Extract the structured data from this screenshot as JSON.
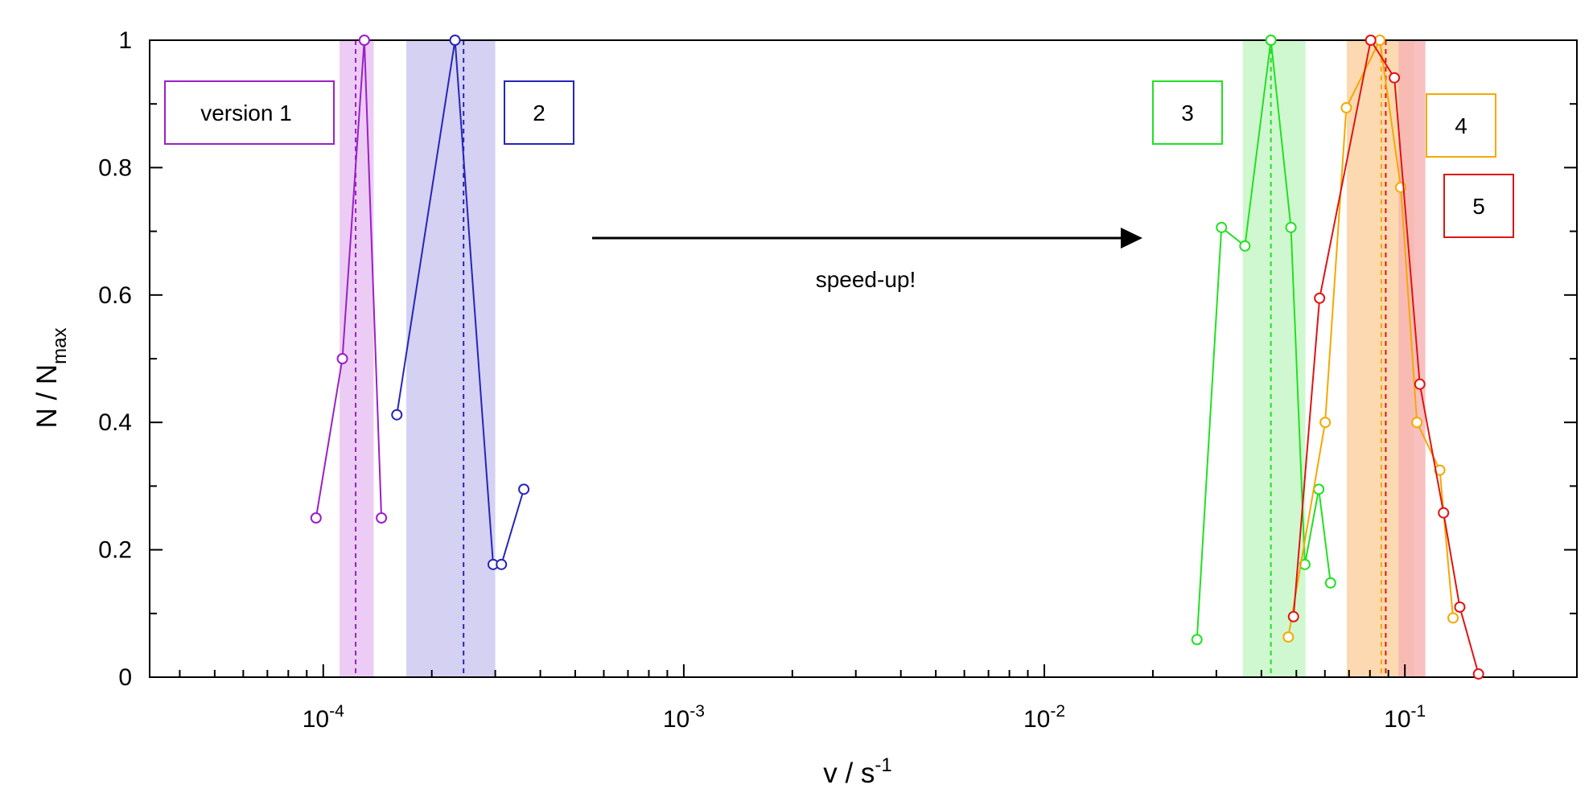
{
  "chart_data": {
    "type": "line",
    "x_scale": "log",
    "xlim": [
      3.3e-05,
      0.3
    ],
    "ylim": [
      0,
      1
    ],
    "xlabel": {
      "base": "v / s",
      "sup": "-1"
    },
    "ylabel": {
      "base": "N / N",
      "sub": "max"
    },
    "x_major_ticks": [
      {
        "value": 0.0001,
        "label_base": "10",
        "label_sup": "-4"
      },
      {
        "value": 0.001,
        "label_base": "10",
        "label_sup": "-3"
      },
      {
        "value": 0.01,
        "label_base": "10",
        "label_sup": "-2"
      },
      {
        "value": 0.1,
        "label_base": "10",
        "label_sup": "-1"
      }
    ],
    "y_ticks": [
      {
        "value": 0,
        "label": "0"
      },
      {
        "value": 0.2,
        "label": "0.2"
      },
      {
        "value": 0.4,
        "label": "0.4"
      },
      {
        "value": 0.6,
        "label": "0.6"
      },
      {
        "value": 0.8,
        "label": "0.8"
      },
      {
        "value": 1.0,
        "label": "1"
      }
    ],
    "grid": false,
    "series": [
      {
        "name": "version 1",
        "color": "#9b1fc7",
        "band_color": "#e9c3f2",
        "band": [
          0.000111,
          0.000138
        ],
        "mean": 0.000123,
        "segments": [
          [
            [
              9.55e-05,
              0.25
            ],
            [
              0.000113,
              0.5
            ],
            [
              0.00013,
              1.0
            ],
            [
              0.000145,
              0.25
            ]
          ]
        ]
      },
      {
        "name": "2",
        "color": "#2626b8",
        "band_color": "#cdc9f0",
        "band": [
          0.00017,
          0.0003
        ],
        "mean": 0.000245,
        "segments": [
          [
            [
              0.00016,
              0.412
            ],
            [
              0.000232,
              1.0
            ],
            [
              0.000296,
              0.177
            ]
          ],
          [
            [
              0.000312,
              0.177
            ],
            [
              0.00036,
              0.295
            ]
          ]
        ]
      },
      {
        "name": "3",
        "color": "#22e022",
        "band_color": "#c8f7c8",
        "band": [
          0.0355,
          0.053
        ],
        "mean": 0.0425,
        "segments": [
          [
            [
              0.0265,
              0.059
            ],
            [
              0.031,
              0.706
            ],
            [
              0.036,
              0.677
            ],
            [
              0.0425,
              1.0
            ],
            [
              0.0483,
              0.706
            ],
            [
              0.0528,
              0.177
            ],
            [
              0.0577,
              0.295
            ],
            [
              0.0622,
              0.148
            ]
          ]
        ]
      },
      {
        "name": "4",
        "color": "#f5a800",
        "band_color": "#fbd2a2",
        "band": [
          0.069,
          0.106
        ],
        "mean": 0.086,
        "segments": [
          [
            [
              0.0475,
              0.063
            ],
            [
              0.0601,
              0.4
            ],
            [
              0.0688,
              0.894
            ],
            [
              0.0852,
              1.0
            ],
            [
              0.0974,
              0.769
            ],
            [
              0.108,
              0.4
            ],
            [
              0.125,
              0.325
            ],
            [
              0.136,
              0.093
            ]
          ]
        ]
      },
      {
        "name": "5",
        "color": "#e01414",
        "band_color": "#f7b5b5",
        "band": [
          0.096,
          0.114
        ],
        "mean": 0.0885,
        "segments": [
          [
            [
              0.0491,
              0.095
            ],
            [
              0.058,
              0.595
            ],
            [
              0.0804,
              1.0
            ],
            [
              0.0935,
              0.941
            ],
            [
              0.11,
              0.46
            ],
            [
              0.128,
              0.258
            ],
            [
              0.142,
              0.11
            ],
            [
              0.16,
              0.005
            ]
          ]
        ]
      }
    ],
    "annotations": {
      "arrow_label": "speed-up!"
    }
  }
}
